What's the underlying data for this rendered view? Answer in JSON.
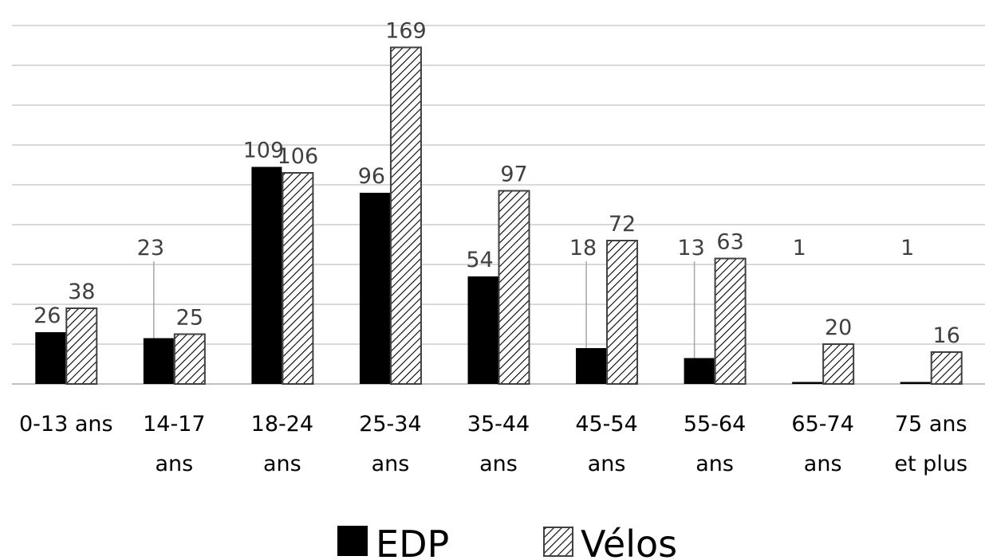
{
  "chart_data": {
    "type": "bar",
    "categories": [
      [
        "0-13 ans"
      ],
      [
        "14-17",
        "ans"
      ],
      [
        "18-24",
        "ans"
      ],
      [
        "25-34",
        "ans"
      ],
      [
        "35-44",
        "ans"
      ],
      [
        "45-54",
        "ans"
      ],
      [
        "55-64",
        "ans"
      ],
      [
        "65-74",
        "ans"
      ],
      [
        "75 ans",
        "et plus"
      ]
    ],
    "series": [
      {
        "name": "EDP",
        "values": [
          26,
          23,
          109,
          96,
          54,
          18,
          13,
          1,
          1
        ],
        "color": "#000000",
        "pattern": "solid"
      },
      {
        "name": "Vélos",
        "values": [
          38,
          25,
          106,
          169,
          97,
          72,
          63,
          20,
          16
        ],
        "color": "#404040",
        "pattern": "diagonal-hatch"
      }
    ],
    "ylim": [
      0,
      180
    ],
    "grid": true,
    "legend_position": "bottom",
    "data_labels": true
  }
}
